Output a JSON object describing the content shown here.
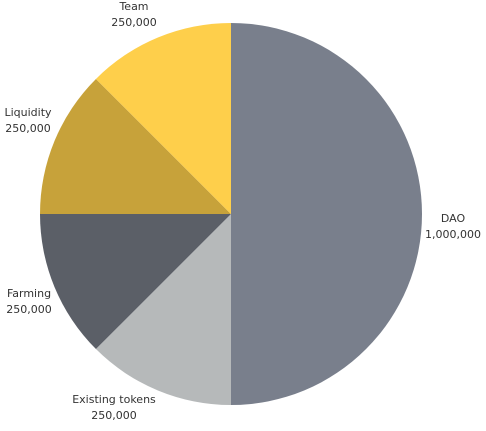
{
  "chart_data": {
    "type": "pie",
    "title": "",
    "slices": [
      {
        "label": "DAO",
        "value_text": "1,000,000",
        "value": 1000000,
        "color": "#797f8c"
      },
      {
        "label": "Existing tokens",
        "value_text": "250,000",
        "value": 250000,
        "color": "#b6b9ba"
      },
      {
        "label": "Farming",
        "value_text": "250,000",
        "value": 250000,
        "color": "#5b5f67"
      },
      {
        "label": "Liquidity",
        "value_text": "250,000",
        "value": 250000,
        "color": "#c7a23a"
      },
      {
        "label": "Team",
        "value_text": "250,000",
        "value": 250000,
        "color": "#fecf4b"
      }
    ]
  }
}
